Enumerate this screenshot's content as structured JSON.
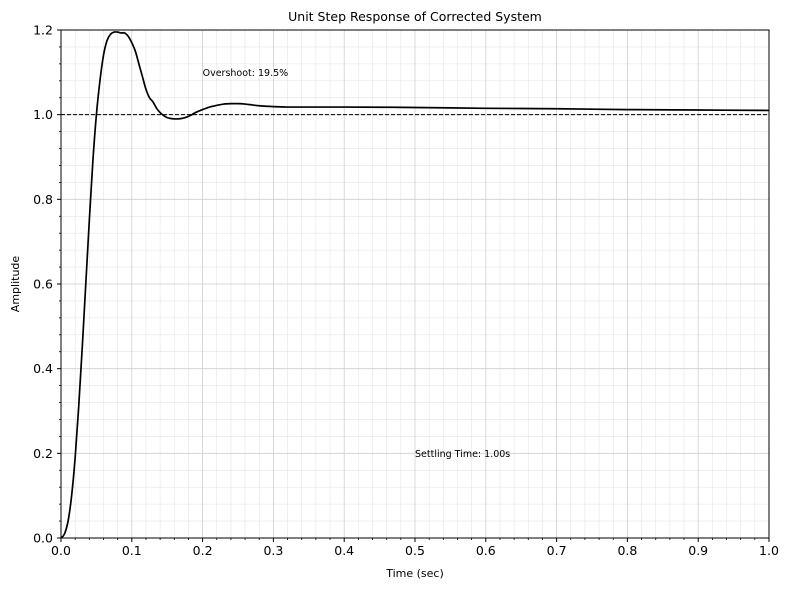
{
  "chart_data": {
    "type": "line",
    "title": "Unit Step Response of Corrected System",
    "xlabel": "Time (sec)",
    "ylabel": "Amplitude",
    "xlim": [
      0,
      1
    ],
    "ylim": [
      0,
      1.2
    ],
    "xticks": [
      "0.0",
      "0.1",
      "0.2",
      "0.3",
      "0.4",
      "0.5",
      "0.6",
      "0.7",
      "0.8",
      "0.9",
      "1.0"
    ],
    "yticks": [
      "0.0",
      "0.2",
      "0.4",
      "0.6",
      "0.8",
      "1.0",
      "1.2"
    ],
    "grid": true,
    "reference_line": {
      "y": 1.0,
      "style": "dashed"
    },
    "annotations": [
      {
        "text": "Overshoot: 19.5%",
        "x": 0.2,
        "y": 1.1
      },
      {
        "text": "Settling Time: 1.00s",
        "x": 0.5,
        "y": 0.2
      }
    ],
    "series": [
      {
        "color": "#000000",
        "x": [
          0,
          0.005,
          0.01,
          0.015,
          0.02,
          0.025,
          0.03,
          0.035,
          0.04,
          0.045,
          0.05,
          0.055,
          0.06,
          0.065,
          0.07,
          0.075,
          0.08,
          0.085,
          0.09,
          0.095,
          0.1,
          0.105,
          0.11,
          0.115,
          0.12,
          0.125,
          0.13,
          0.135,
          0.14,
          0.145,
          0.15,
          0.155,
          0.16,
          0.165,
          0.17,
          0.175,
          0.18,
          0.185,
          0.19,
          0.2,
          0.21,
          0.22,
          0.23,
          0.24,
          0.25,
          0.26,
          0.27,
          0.28,
          0.3,
          0.32,
          0.35,
          0.4,
          0.5,
          0.6,
          0.7,
          0.8,
          0.9,
          1.0
        ],
        "y": [
          0,
          0.01,
          0.04,
          0.1,
          0.19,
          0.31,
          0.45,
          0.6,
          0.75,
          0.89,
          1.0,
          1.08,
          1.14,
          1.175,
          1.19,
          1.195,
          1.195,
          1.193,
          1.193,
          1.185,
          1.17,
          1.15,
          1.12,
          1.09,
          1.06,
          1.04,
          1.03,
          1.015,
          1.005,
          0.998,
          0.993,
          0.991,
          0.99,
          0.99,
          0.991,
          0.993,
          0.996,
          1.0,
          1.005,
          1.012,
          1.018,
          1.022,
          1.025,
          1.026,
          1.026,
          1.025,
          1.023,
          1.021,
          1.019,
          1.018,
          1.018,
          1.018,
          1.017,
          1.015,
          1.014,
          1.012,
          1.011,
          1.01
        ]
      }
    ]
  }
}
